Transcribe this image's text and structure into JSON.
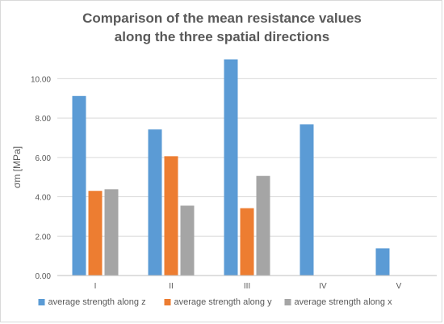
{
  "chart_data": {
    "type": "bar",
    "title_lines": [
      "Comparison of the mean resistance values",
      "along the three spatial directions"
    ],
    "xlabel": "",
    "ylabel": "σm [MPa]",
    "categories": [
      "I",
      "II",
      "III",
      "IV",
      "V"
    ],
    "series": [
      {
        "name": "average strength along z",
        "color": "#5B9BD5",
        "values": [
          9.12,
          7.42,
          10.98,
          7.68,
          1.38
        ]
      },
      {
        "name": "average strength along y",
        "color": "#ED7D31",
        "values": [
          4.3,
          6.06,
          3.42,
          null,
          null
        ]
      },
      {
        "name": "average strength along x",
        "color": "#A5A5A5",
        "values": [
          4.38,
          3.55,
          5.06,
          null,
          null
        ]
      }
    ],
    "ylim": [
      0,
      11
    ],
    "yticks": [
      "0.00",
      "2.00",
      "4.00",
      "6.00",
      "8.00",
      "10.00"
    ],
    "grid": true,
    "legend": "bottom"
  }
}
